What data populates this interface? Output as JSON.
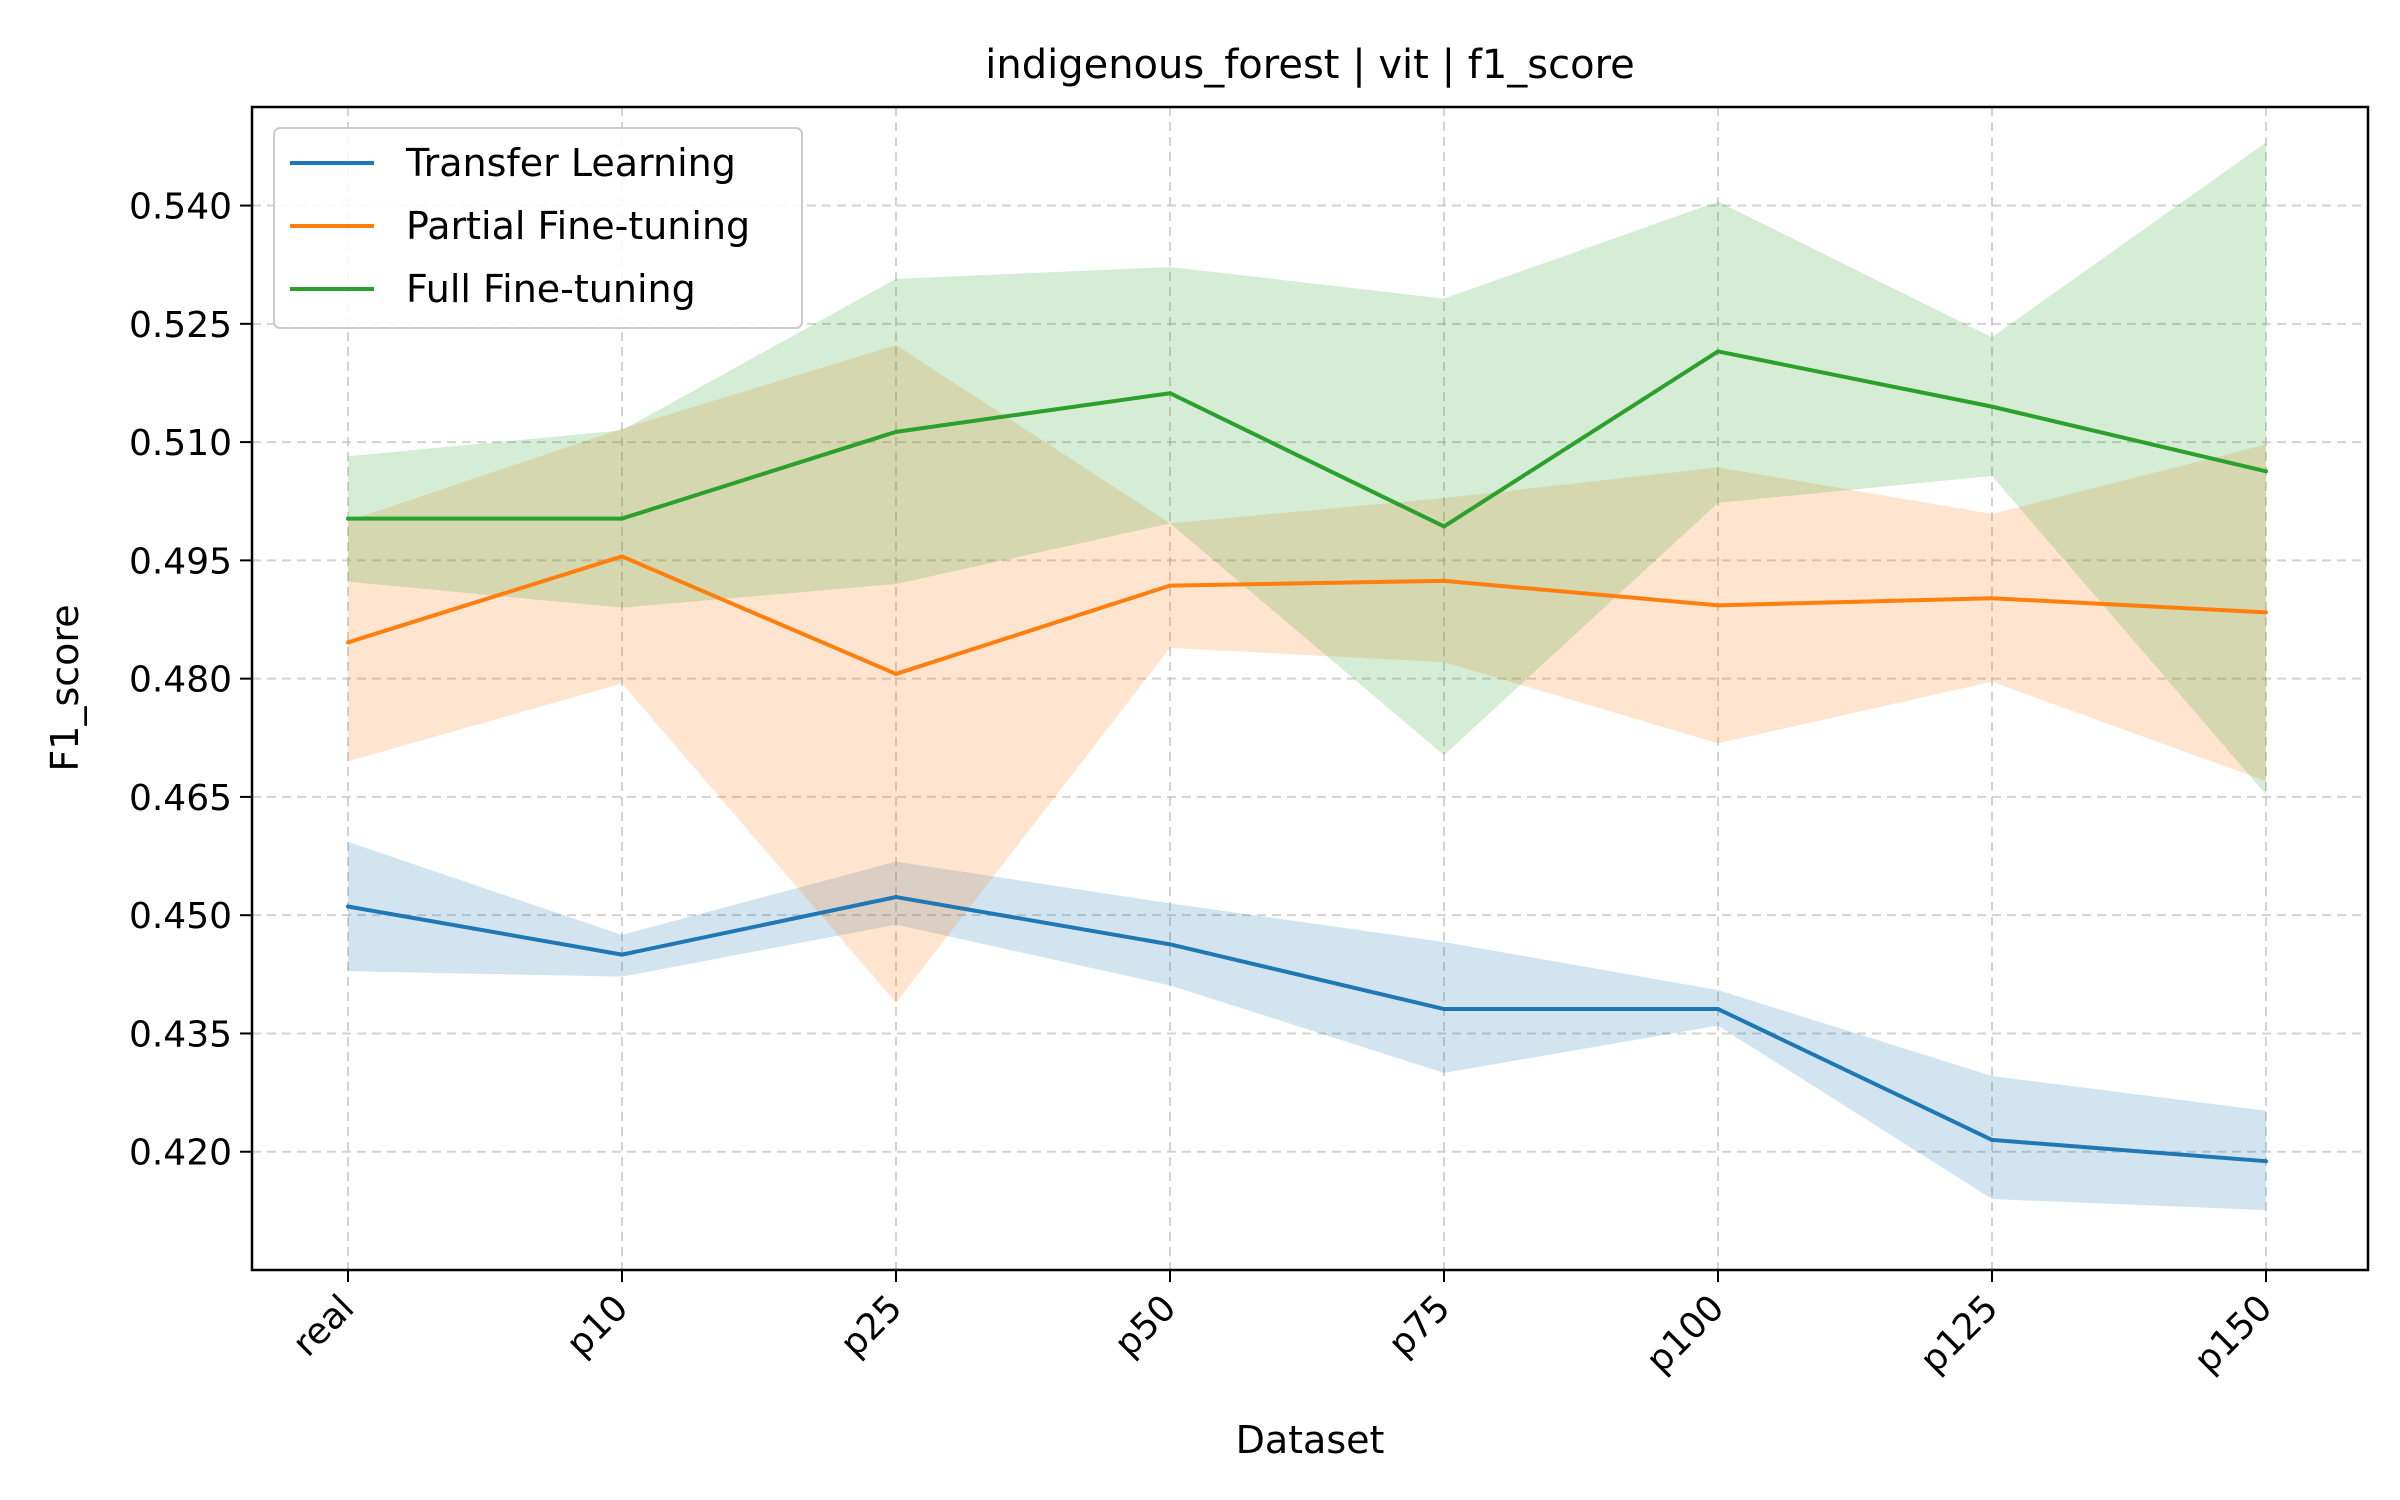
{
  "chart_data": {
    "type": "line",
    "title": "indigenous_forest | vit | f1_score",
    "xlabel": "Dataset",
    "ylabel": "F1_score",
    "categories": [
      "real",
      "p10",
      "p25",
      "p50",
      "p75",
      "p100",
      "p125",
      "p150"
    ],
    "yticks": [
      "0.420",
      "0.435",
      "0.450",
      "0.465",
      "0.480",
      "0.495",
      "0.510",
      "0.525",
      "0.540"
    ],
    "ylim": [
      0.405,
      0.5525
    ],
    "grid": true,
    "legend_position": "top-left",
    "series": [
      {
        "name": "Transfer Learning",
        "color": "#1f77b4",
        "values": [
          0.4511,
          0.445,
          0.4523,
          0.4463,
          0.4381,
          0.4381,
          0.4215,
          0.4188
        ],
        "lower": [
          0.4429,
          0.4422,
          0.4488,
          0.4411,
          0.43,
          0.436,
          0.414,
          0.4126
        ],
        "upper": [
          0.4593,
          0.4475,
          0.4568,
          0.4515,
          0.4466,
          0.4405,
          0.4296,
          0.4252
        ]
      },
      {
        "name": "Partial Fine-tuning",
        "color": "#ff7f0e",
        "values": [
          0.4846,
          0.4955,
          0.4806,
          0.4918,
          0.4924,
          0.4893,
          0.4902,
          0.4884
        ],
        "lower": [
          0.4695,
          0.4794,
          0.4389,
          0.4839,
          0.4821,
          0.4718,
          0.4796,
          0.467
        ],
        "upper": [
          0.5,
          0.5117,
          0.5223,
          0.4997,
          0.5029,
          0.5068,
          0.5009,
          0.5097
        ]
      },
      {
        "name": "Full Fine-tuning",
        "color": "#2ca02c",
        "values": [
          0.5003,
          0.5003,
          0.5113,
          0.5162,
          0.4993,
          0.5215,
          0.5145,
          0.5063
        ],
        "lower": [
          0.4923,
          0.489,
          0.492,
          0.4997,
          0.4703,
          0.5023,
          0.5057,
          0.4653
        ],
        "upper": [
          0.5082,
          0.5115,
          0.5307,
          0.5322,
          0.5282,
          0.5405,
          0.5233,
          0.548
        ]
      }
    ]
  }
}
